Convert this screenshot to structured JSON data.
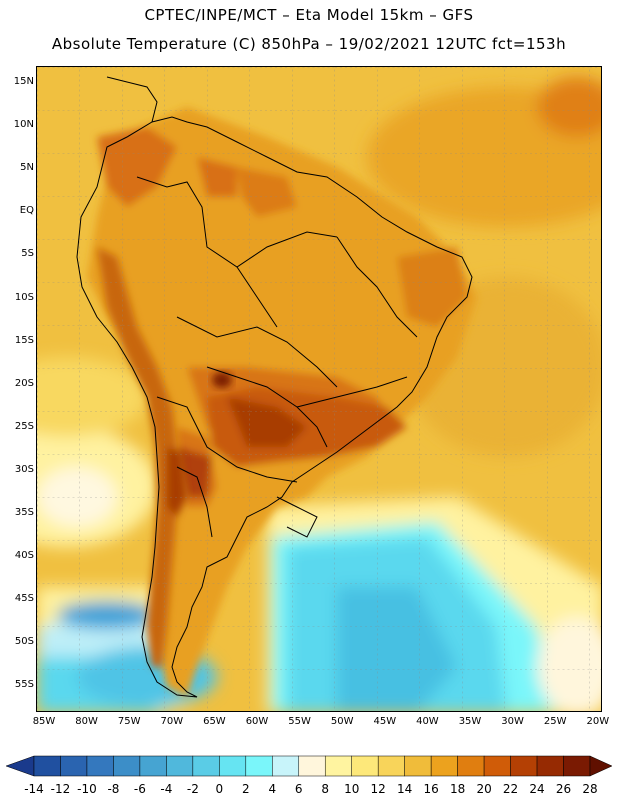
{
  "header": {
    "line1": "CPTEC/INPE/MCT –  Eta Model 15km – GFS",
    "line2": "Absolute Temperature (C) 850hPa – 19/02/2021 12UTC fct=153h"
  },
  "map": {
    "region": "South America",
    "lat_labels": [
      "15N",
      "10N",
      "5N",
      "EQ",
      "5S",
      "10S",
      "15S",
      "20S",
      "25S",
      "30S",
      "35S",
      "40S",
      "45S",
      "50S",
      "55S"
    ],
    "lon_labels": [
      "85W",
      "80W",
      "75W",
      "70W",
      "65W",
      "60W",
      "55W",
      "50W",
      "45W",
      "40W",
      "35W",
      "30W",
      "25W",
      "20W"
    ],
    "colors": {
      "ocean_warm": "#f0c040",
      "land_warm": "#e8a020",
      "land_hot": "#d06010",
      "land_very_hot": "#a03000",
      "cool_ocean": "#5ad8ee",
      "cold_ocean": "#3aa8d8"
    }
  },
  "colorbar": {
    "labels": [
      "-14",
      "-12",
      "-10",
      "-8",
      "-6",
      "-4",
      "-2",
      "0",
      "2",
      "4",
      "6",
      "8",
      "10",
      "12",
      "14",
      "16",
      "18",
      "20",
      "22",
      "24",
      "26",
      "28"
    ],
    "colors": [
      "#1a3a8c",
      "#2050a0",
      "#2a64b0",
      "#3478be",
      "#3c8ec8",
      "#46a4d2",
      "#50b8dc",
      "#5acce6",
      "#66e4f2",
      "#7af6fa",
      "#c8f4fa",
      "#fff6dc",
      "#fff4a0",
      "#fde87a",
      "#f8d45a",
      "#f0bc3a",
      "#eca21e",
      "#e07e10",
      "#d05c08",
      "#b44004",
      "#962a02",
      "#7a1a02",
      "#601000"
    ]
  }
}
